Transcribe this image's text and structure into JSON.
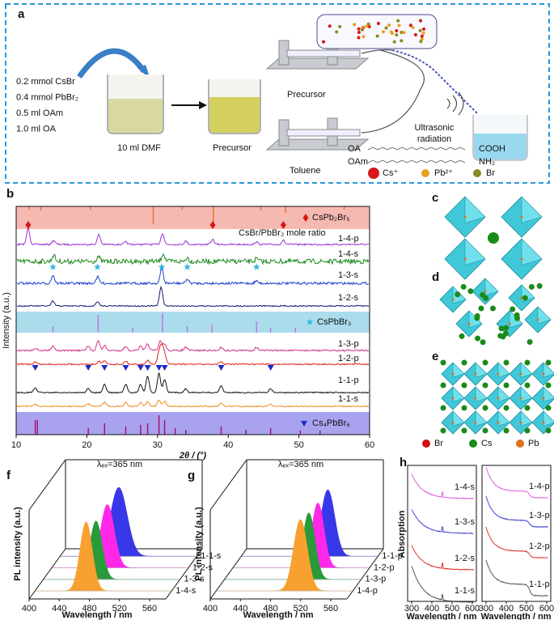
{
  "panel_a": {
    "label": "a",
    "reagents": [
      "0.2 mmol CsBr",
      "0.4 mmol PbBr₂",
      "0.5 ml OAm",
      "1.0 ml OA"
    ],
    "solvent": "10 ml DMF",
    "precursor_beaker": "Precursor",
    "precursor_syringe": "Precursor",
    "toluene_syringe": "Toluene",
    "ultrasonic": [
      "Ultrasonic",
      "radiation"
    ],
    "ligands": [
      {
        "name": "OA",
        "group": "COOH"
      },
      {
        "name": "OAm",
        "group": "NH₂"
      }
    ],
    "legend": [
      {
        "label": "Cs⁺",
        "color": "#d81818"
      },
      {
        "label": "Pb²⁺",
        "color": "#e8a020"
      },
      {
        "label": "Br",
        "color": "#8a8a20"
      }
    ]
  },
  "panel_b": {
    "label": "b",
    "x_label": "2θ / (°)",
    "y_label": "Intensity (a.u.)",
    "xlim": [
      10,
      60
    ],
    "xticks": [
      10,
      20,
      30,
      40,
      50,
      60
    ],
    "annotation": "CsBr/PbBr₂ mole ratio",
    "references": [
      {
        "name": "CsPb₂Br₅",
        "color": "#f6b9b2"
      },
      {
        "name": "CsPbBr₃",
        "color": "#aadcec"
      },
      {
        "name": "Cs₄PbBr₆",
        "color": "#a9a2ee"
      }
    ],
    "traces": [
      {
        "name": "1-4-p",
        "color": "#9b30d8"
      },
      {
        "name": "1-4-s",
        "color": "#1e8a1e"
      },
      {
        "name": "1-3-s",
        "color": "#1a3fd0"
      },
      {
        "name": "1-2-s",
        "color": "#101a70"
      },
      {
        "name": "1-3-p",
        "color": "#d0308a"
      },
      {
        "name": "1-2-p",
        "color": "#e02020"
      },
      {
        "name": "1-1-p",
        "color": "#111111"
      },
      {
        "name": "1-1-s",
        "color": "#f08a20"
      }
    ]
  },
  "panel_c": {
    "label": "c"
  },
  "panel_d": {
    "label": "d"
  },
  "panel_e": {
    "label": "e"
  },
  "structure_legend": [
    {
      "label": "Br",
      "color": "#d01010"
    },
    {
      "label": "Cs",
      "color": "#1a8a1a"
    },
    {
      "label": "Pb",
      "color": "#e07020"
    }
  ],
  "panel_f": {
    "label": "f",
    "excitation": "λₑₓ=365 nm",
    "x_label": "Wavelength / nm",
    "y_label": "PL intensity (a.u.)",
    "xticks": [
      400,
      440,
      480,
      520,
      560
    ],
    "series": [
      {
        "name": "1-1-s",
        "color": "#3838e8"
      },
      {
        "name": "1-2-s",
        "color": "#ff28e8"
      },
      {
        "name": "1-3-s",
        "color": "#2a9a3a"
      },
      {
        "name": "1-4-s",
        "color": "#f8a030"
      }
    ]
  },
  "panel_g": {
    "label": "g",
    "excitation": "λₑₓ=365 nm",
    "x_label": "Wavelength / nm",
    "y_label": "PL intensity (a.u.)",
    "xticks": [
      400,
      440,
      480,
      520,
      560
    ],
    "series": [
      {
        "name": "1-1-p",
        "color": "#3838e8"
      },
      {
        "name": "1-2-p",
        "color": "#ff28e8"
      },
      {
        "name": "1-3-p",
        "color": "#2a9a3a"
      },
      {
        "name": "1-4-p",
        "color": "#f8a030"
      }
    ]
  },
  "panel_h": {
    "label": "h",
    "y_label": "Absorption",
    "x_label": "Wavelength / nm",
    "xticks": [
      300,
      400,
      500,
      600
    ],
    "left": [
      {
        "name": "1-4-s",
        "color": "#e060e0"
      },
      {
        "name": "1-3-s",
        "color": "#4848d0"
      },
      {
        "name": "1-2-s",
        "color": "#e03838"
      },
      {
        "name": "1-1-s",
        "color": "#555555"
      }
    ],
    "right": [
      {
        "name": "1-4-p",
        "color": "#e060e0"
      },
      {
        "name": "1-3-p",
        "color": "#4848d0"
      },
      {
        "name": "1-2-p",
        "color": "#e03838"
      },
      {
        "name": "1-1-p",
        "color": "#555555"
      }
    ]
  }
}
